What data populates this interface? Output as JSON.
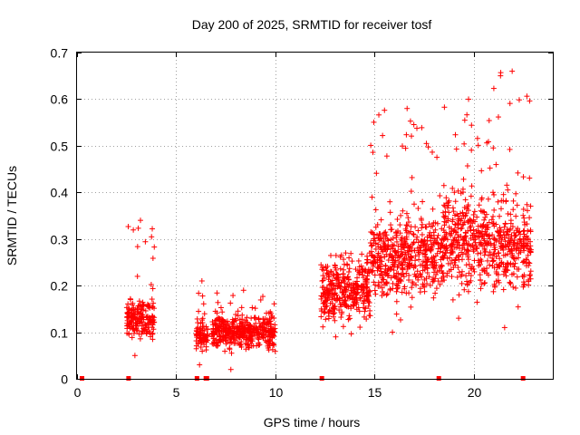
{
  "chart_data": {
    "type": "scatter",
    "title": "Day 200 of 2025, SRMTID for receiver tosf",
    "xlabel": "GPS time / hours",
    "ylabel": "SRMTID / TECUs",
    "xlim": [
      0,
      24
    ],
    "ylim": [
      0,
      0.7
    ],
    "x_ticks": [
      0,
      5,
      10,
      15,
      20
    ],
    "x_tick_labels": [
      "0",
      "5",
      "10",
      "15",
      "20"
    ],
    "y_ticks": [
      0,
      0.1,
      0.2,
      0.3,
      0.4,
      0.5,
      0.6,
      0.7
    ],
    "y_tick_labels": [
      "0",
      "0.1",
      "0.2",
      "0.3",
      "0.4",
      "0.5",
      "0.6",
      "0.7"
    ],
    "grid": true,
    "marker": "+",
    "color": "#ff0000",
    "zero_points_x": [
      0.25,
      2.6,
      6.05,
      6.5,
      6.55,
      12.35,
      18.25,
      22.5
    ],
    "clusters": [
      {
        "x_range": [
          2.5,
          3.9
        ],
        "typical_y": 0.13,
        "y_min": 0.05,
        "y_max": 0.34
      },
      {
        "x_range": [
          6.0,
          6.6
        ],
        "typical_y": 0.09,
        "y_min": 0.03,
        "y_max": 0.21
      },
      {
        "x_range": [
          6.8,
          10.0
        ],
        "typical_y": 0.1,
        "y_min": 0.02,
        "y_max": 0.19
      },
      {
        "x_range": [
          12.3,
          14.8
        ],
        "typical_y": 0.19,
        "y_min": 0.09,
        "y_max": 0.27
      },
      {
        "x_range": [
          14.8,
          18.5
        ],
        "typical_y": 0.26,
        "y_min": 0.1,
        "y_max": 0.58
      },
      {
        "x_range": [
          18.5,
          21.0
        ],
        "typical_y": 0.3,
        "y_min": 0.13,
        "y_max": 0.6
      },
      {
        "x_range": [
          21.0,
          22.9
        ],
        "typical_y": 0.28,
        "y_min": 0.11,
        "y_max": 0.66
      }
    ]
  }
}
